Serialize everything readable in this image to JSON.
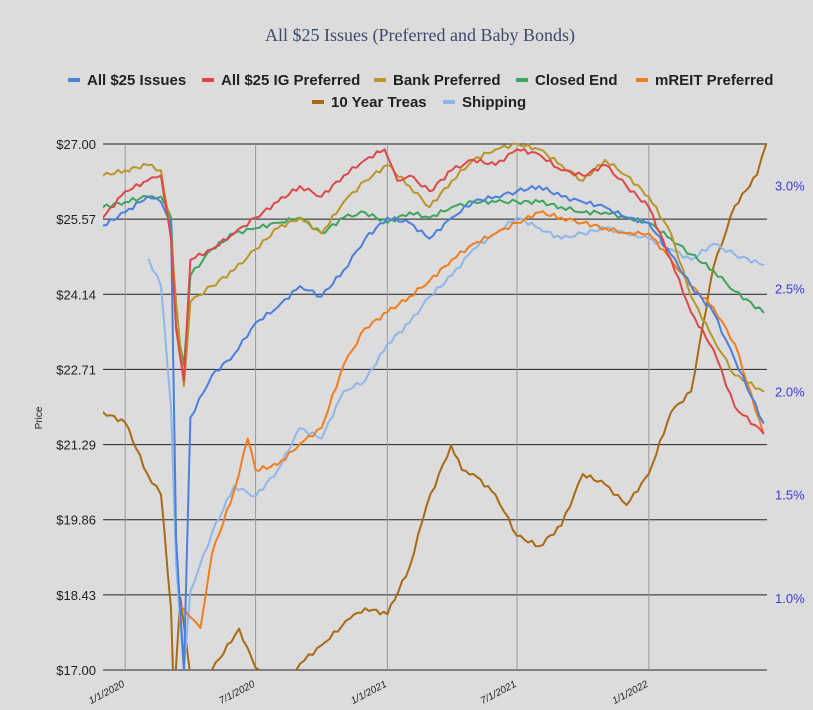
{
  "chart_data": {
    "type": "line",
    "title": "All $25 Issues (Preferred and Baby Bonds)",
    "ylabel": "Price",
    "xlabel": "",
    "x_start": "2019-12-01",
    "x_end": "2022-06-15",
    "ylim": [
      17.0,
      27.0
    ],
    "y_ticks": [
      "$27.00",
      "$25.57",
      "$24.14",
      "$22.71",
      "$21.29",
      "$19.86",
      "$18.43",
      "$17.00"
    ],
    "y2lim": [
      0.65,
      3.2
    ],
    "y2_ticks": [
      "3.0%",
      "2.5%",
      "2.0%",
      "1.5%",
      "1.0%"
    ],
    "x_ticks": [
      "1/1/2020",
      "7/1/2020",
      "1/1/2021",
      "7/1/2021",
      "1/1/2022"
    ],
    "x_tick_dates": [
      "2020-01-01",
      "2020-07-01",
      "2021-01-01",
      "2021-07-01",
      "2022-01-01"
    ],
    "grid": "horizontal on ticks, vertical on x ticks",
    "legend_position": "top",
    "series": [
      {
        "name": "All $25 Issues",
        "color": "#4a7fdc",
        "axis": "left",
        "x": [
          "2019-12-01",
          "2020-01-01",
          "2020-02-01",
          "2020-02-20",
          "2020-03-05",
          "2020-03-12",
          "2020-03-23",
          "2020-04-01",
          "2020-05-01",
          "2020-06-01",
          "2020-07-01",
          "2020-08-01",
          "2020-09-01",
          "2020-10-01",
          "2020-11-01",
          "2020-12-01",
          "2021-01-01",
          "2021-02-01",
          "2021-03-01",
          "2021-04-01",
          "2021-05-01",
          "2021-06-01",
          "2021-07-01",
          "2021-08-01",
          "2021-09-01",
          "2021-10-01",
          "2021-11-01",
          "2021-12-01",
          "2022-01-01",
          "2022-02-01",
          "2022-03-01",
          "2022-04-01",
          "2022-05-01",
          "2022-06-10"
        ],
        "y": [
          25.45,
          25.7,
          26.0,
          25.9,
          25.5,
          19.5,
          17.0,
          21.8,
          22.6,
          23.0,
          23.6,
          23.9,
          24.3,
          24.1,
          24.6,
          25.2,
          25.6,
          25.5,
          25.2,
          25.6,
          25.9,
          26.0,
          26.1,
          26.2,
          26.0,
          25.9,
          25.8,
          25.6,
          25.5,
          24.9,
          24.3,
          23.8,
          22.9,
          21.7
        ]
      },
      {
        "name": "All $25 IG Preferred",
        "color": "#dc4848",
        "axis": "left",
        "x": [
          "2019-12-01",
          "2020-01-01",
          "2020-02-01",
          "2020-02-20",
          "2020-03-05",
          "2020-03-12",
          "2020-03-23",
          "2020-04-01",
          "2020-05-01",
          "2020-06-01",
          "2020-07-01",
          "2020-08-01",
          "2020-09-01",
          "2020-10-01",
          "2020-11-01",
          "2020-12-01",
          "2020-12-28",
          "2021-01-15",
          "2021-02-01",
          "2021-03-01",
          "2021-04-01",
          "2021-05-01",
          "2021-06-01",
          "2021-07-01",
          "2021-08-01",
          "2021-09-01",
          "2021-10-01",
          "2021-11-01",
          "2021-12-01",
          "2022-01-01",
          "2022-02-01",
          "2022-03-01",
          "2022-04-01",
          "2022-05-01",
          "2022-06-10"
        ],
        "y": [
          25.6,
          26.1,
          26.3,
          26.4,
          25.2,
          23.5,
          22.5,
          24.8,
          25.0,
          25.3,
          25.6,
          25.9,
          26.2,
          26.0,
          26.4,
          26.7,
          26.9,
          26.3,
          26.4,
          26.1,
          26.5,
          26.7,
          26.6,
          26.9,
          26.8,
          26.5,
          26.4,
          26.6,
          26.2,
          25.8,
          24.8,
          23.8,
          23.1,
          22.0,
          21.5
        ]
      },
      {
        "name": "Bank Preferred",
        "color": "#b8962a",
        "axis": "left",
        "x": [
          "2019-12-01",
          "2020-01-01",
          "2020-02-01",
          "2020-02-20",
          "2020-03-05",
          "2020-03-12",
          "2020-03-23",
          "2020-04-01",
          "2020-05-01",
          "2020-06-01",
          "2020-07-01",
          "2020-08-01",
          "2020-09-01",
          "2020-10-01",
          "2020-11-01",
          "2020-12-01",
          "2021-01-01",
          "2021-02-01",
          "2021-03-01",
          "2021-04-01",
          "2021-05-01",
          "2021-06-01",
          "2021-07-01",
          "2021-08-01",
          "2021-09-01",
          "2021-10-01",
          "2021-11-01",
          "2021-12-01",
          "2022-01-01",
          "2022-02-01",
          "2022-03-01",
          "2022-04-01",
          "2022-05-01",
          "2022-06-10"
        ],
        "y": [
          26.4,
          26.5,
          26.6,
          26.5,
          25.3,
          24.0,
          22.4,
          24.0,
          24.3,
          24.6,
          25.0,
          25.4,
          25.6,
          25.3,
          25.9,
          26.3,
          26.6,
          26.2,
          25.8,
          26.3,
          26.7,
          26.9,
          27.0,
          26.9,
          26.6,
          26.3,
          26.7,
          26.4,
          26.0,
          25.3,
          24.1,
          23.3,
          22.6,
          22.3
        ]
      },
      {
        "name": "Closed End",
        "color": "#3da55d",
        "axis": "left",
        "x": [
          "2019-12-01",
          "2020-01-01",
          "2020-02-01",
          "2020-02-20",
          "2020-03-05",
          "2020-03-12",
          "2020-03-23",
          "2020-04-01",
          "2020-05-01",
          "2020-06-01",
          "2020-07-01",
          "2020-08-01",
          "2020-09-01",
          "2020-10-01",
          "2020-11-01",
          "2020-12-01",
          "2021-01-01",
          "2021-02-01",
          "2021-03-01",
          "2021-04-01",
          "2021-05-01",
          "2021-06-01",
          "2021-07-01",
          "2021-08-01",
          "2021-09-01",
          "2021-10-01",
          "2021-11-01",
          "2021-12-01",
          "2022-01-01",
          "2022-02-01",
          "2022-03-01",
          "2022-04-01",
          "2022-05-01",
          "2022-06-10"
        ],
        "y": [
          25.8,
          25.9,
          26.0,
          26.0,
          25.6,
          23.5,
          22.8,
          24.5,
          25.0,
          25.3,
          25.4,
          25.5,
          25.6,
          25.3,
          25.6,
          25.7,
          25.5,
          25.7,
          25.6,
          25.8,
          25.9,
          25.9,
          25.9,
          25.9,
          25.8,
          25.7,
          25.7,
          25.6,
          25.5,
          25.2,
          24.9,
          24.6,
          24.2,
          23.8
        ]
      },
      {
        "name": "mREIT Preferred",
        "color": "#f07e1e",
        "axis": "left",
        "x": [
          "2020-03-20",
          "2020-04-01",
          "2020-04-15",
          "2020-05-01",
          "2020-06-01",
          "2020-06-20",
          "2020-07-01",
          "2020-08-01",
          "2020-09-01",
          "2020-10-01",
          "2020-11-01",
          "2020-12-01",
          "2021-01-01",
          "2021-02-01",
          "2021-03-01",
          "2021-04-01",
          "2021-05-01",
          "2021-06-01",
          "2021-07-01",
          "2021-08-01",
          "2021-09-01",
          "2021-10-01",
          "2021-11-01",
          "2021-12-01",
          "2022-01-01",
          "2022-02-01",
          "2022-03-01",
          "2022-04-01",
          "2022-05-01",
          "2022-06-10"
        ],
        "y": [
          18.2,
          18.0,
          17.8,
          19.2,
          20.4,
          21.4,
          20.8,
          20.9,
          21.3,
          21.6,
          22.8,
          23.5,
          23.8,
          24.1,
          24.4,
          24.8,
          25.1,
          25.3,
          25.5,
          25.7,
          25.6,
          25.5,
          25.4,
          25.3,
          25.3,
          24.8,
          24.3,
          23.9,
          23.2,
          21.5
        ]
      },
      {
        "name": "10 Year Treas",
        "color": "#a96a14",
        "axis": "right",
        "x": [
          "2019-12-01",
          "2020-01-01",
          "2020-02-01",
          "2020-02-20",
          "2020-03-05",
          "2020-03-09",
          "2020-03-18",
          "2020-04-01",
          "2020-05-01",
          "2020-06-08",
          "2020-07-01",
          "2020-08-01",
          "2020-08-20",
          "2020-09-01",
          "2020-10-01",
          "2020-11-10",
          "2020-12-01",
          "2021-01-01",
          "2021-02-01",
          "2021-02-25",
          "2021-03-31",
          "2021-04-15",
          "2021-05-01",
          "2021-06-01",
          "2021-07-01",
          "2021-08-01",
          "2021-09-01",
          "2021-10-01",
          "2021-11-01",
          "2021-12-01",
          "2022-01-01",
          "2022-02-01",
          "2022-03-01",
          "2022-04-01",
          "2022-05-01",
          "2022-06-01",
          "2022-06-14"
        ],
        "y": [
          1.9,
          1.85,
          1.6,
          1.5,
          0.95,
          0.5,
          1.0,
          0.62,
          0.65,
          0.85,
          0.66,
          0.55,
          0.6,
          0.68,
          0.77,
          0.9,
          0.95,
          0.92,
          1.15,
          1.45,
          1.74,
          1.62,
          1.6,
          1.5,
          1.3,
          1.25,
          1.35,
          1.6,
          1.55,
          1.45,
          1.6,
          1.9,
          2.0,
          2.6,
          2.9,
          3.05,
          3.2
        ]
      },
      {
        "name": "Shipping",
        "color": "#8fb6ea",
        "axis": "left",
        "x": [
          "2020-02-03",
          "2020-02-20",
          "2020-03-05",
          "2020-03-12",
          "2020-03-23",
          "2020-04-01",
          "2020-05-01",
          "2020-06-01",
          "2020-07-01",
          "2020-08-01",
          "2020-09-01",
          "2020-10-01",
          "2020-11-01",
          "2020-12-01",
          "2021-01-01",
          "2021-02-01",
          "2021-03-01",
          "2021-04-01",
          "2021-05-01",
          "2021-06-01",
          "2021-07-01",
          "2021-08-01",
          "2021-09-01",
          "2021-10-01",
          "2021-11-01",
          "2021-12-01",
          "2022-01-01",
          "2022-02-01",
          "2022-03-01",
          "2022-04-01",
          "2022-05-01",
          "2022-06-10"
        ],
        "y": [
          24.8,
          24.3,
          22.0,
          19.0,
          17.0,
          18.5,
          19.6,
          20.5,
          20.3,
          20.8,
          21.6,
          21.4,
          22.3,
          22.5,
          23.2,
          23.6,
          24.1,
          24.5,
          25.0,
          25.3,
          25.6,
          25.4,
          25.2,
          25.3,
          25.4,
          25.3,
          25.2,
          25.0,
          24.8,
          25.1,
          24.9,
          24.7
        ]
      }
    ]
  }
}
